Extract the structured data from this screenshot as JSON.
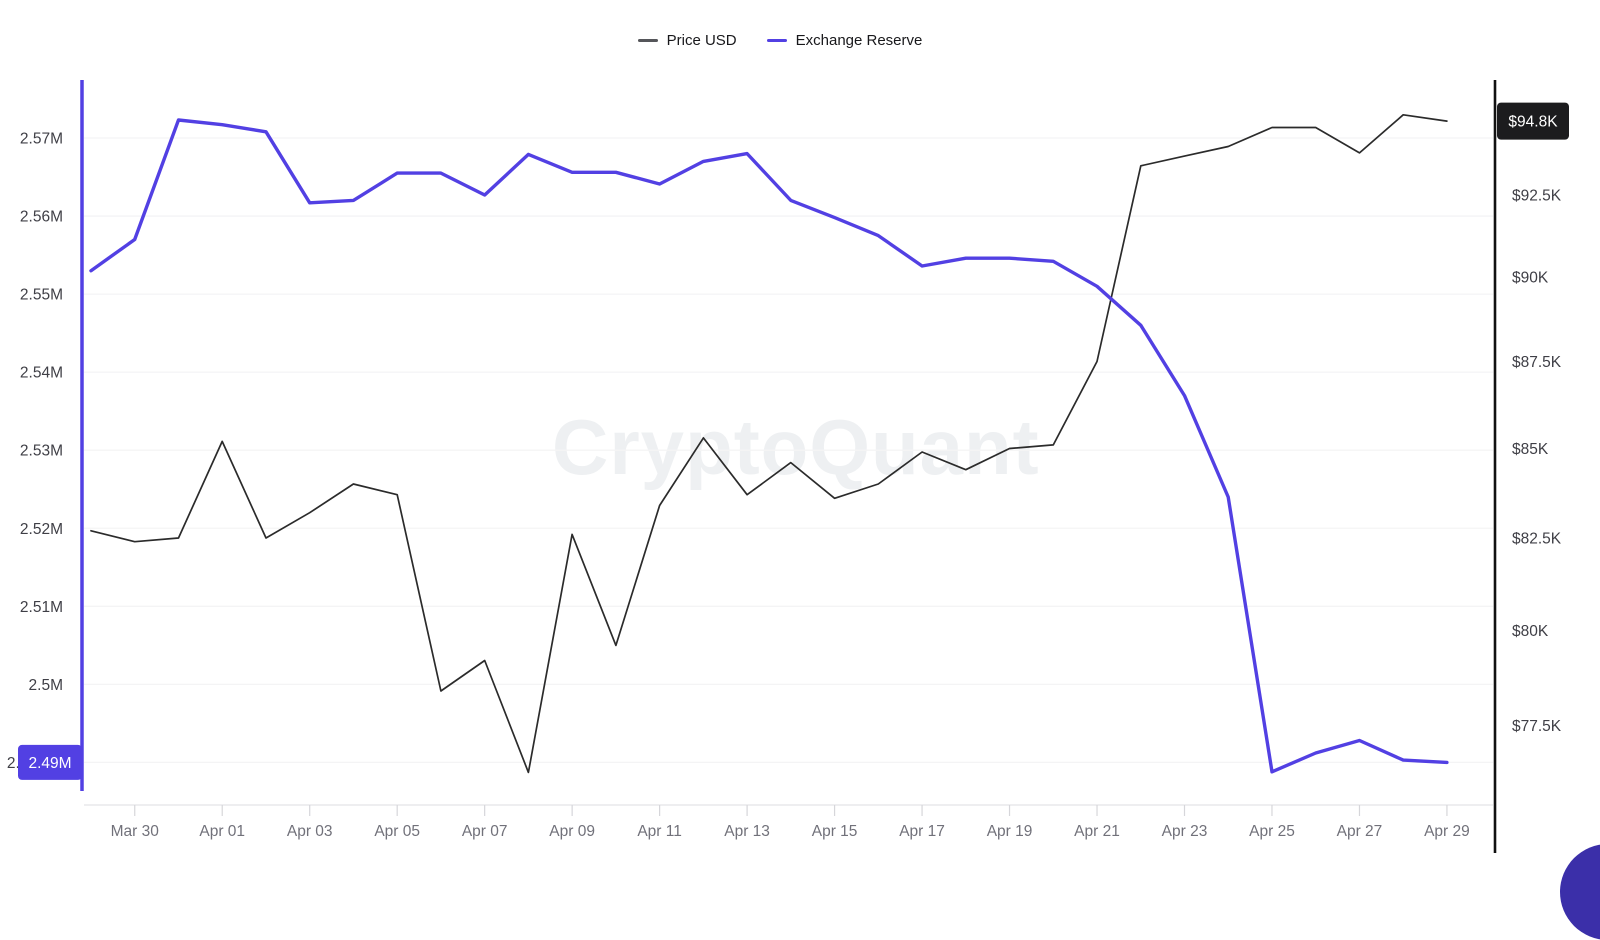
{
  "watermark": "CryptoQuant",
  "legend": [
    {
      "label": "Price USD",
      "color": "#55565a"
    },
    {
      "label": "Exchange Reserve",
      "color": "#5240e3"
    }
  ],
  "chart_data": {
    "type": "line",
    "x": [
      "Mar 29",
      "Mar 30",
      "Mar 31",
      "Apr 01",
      "Apr 02",
      "Apr 03",
      "Apr 04",
      "Apr 05",
      "Apr 06",
      "Apr 07",
      "Apr 08",
      "Apr 09",
      "Apr 10",
      "Apr 11",
      "Apr 12",
      "Apr 13",
      "Apr 14",
      "Apr 15",
      "Apr 16",
      "Apr 17",
      "Apr 18",
      "Apr 19",
      "Apr 20",
      "Apr 21",
      "Apr 22",
      "Apr 23",
      "Apr 24",
      "Apr 25",
      "Apr 26",
      "Apr 27",
      "Apr 28",
      "Apr 29"
    ],
    "x_tick_labels": [
      "Mar 30",
      "Apr 01",
      "Apr 03",
      "Apr 05",
      "Apr 07",
      "Apr 09",
      "Apr 11",
      "Apr 13",
      "Apr 15",
      "Apr 17",
      "Apr 19",
      "Apr 21",
      "Apr 23",
      "Apr 25",
      "Apr 27",
      "Apr 29"
    ],
    "series": [
      {
        "name": "Price USD",
        "axis": "right",
        "unit": "USD (thousands)",
        "color": "#2b2b2b",
        "values": [
          82.7,
          82.4,
          82.5,
          85.2,
          82.5,
          83.2,
          84.0,
          83.7,
          78.4,
          79.2,
          76.3,
          82.6,
          79.6,
          83.4,
          85.3,
          83.7,
          84.6,
          83.6,
          84.0,
          84.9,
          84.4,
          85.0,
          85.1,
          87.5,
          93.4,
          93.7,
          94.0,
          94.6,
          94.6,
          93.8,
          95.0,
          94.8
        ]
      },
      {
        "name": "Exchange Reserve",
        "axis": "left",
        "unit": "BTC (millions)",
        "color": "#5240e3",
        "values": [
          2.553,
          2.557,
          2.5723,
          2.5717,
          2.5708,
          2.5617,
          2.562,
          2.5655,
          2.5655,
          2.5627,
          2.5679,
          2.5656,
          2.5656,
          2.5641,
          2.567,
          2.568,
          2.562,
          2.5598,
          2.5575,
          2.5536,
          2.5546,
          2.5546,
          2.5542,
          2.551,
          2.546,
          2.537,
          2.524,
          2.4888,
          2.4912,
          2.4928,
          2.4903,
          2.49
        ]
      }
    ],
    "left_axis": {
      "scale": "linear",
      "tick_labels": [
        "2.57M",
        "2.56M",
        "2.55M",
        "2.54M",
        "2.53M",
        "2.52M",
        "2.51M",
        "2.5M",
        "2.49M"
      ],
      "tick_values": [
        2.57,
        2.56,
        2.55,
        2.54,
        2.53,
        2.52,
        2.51,
        2.5,
        2.49
      ],
      "range": [
        2.49,
        2.57
      ],
      "current_badge": "2.49M",
      "badge_color": "#5240e3",
      "axis_line_color": "#5240e3"
    },
    "right_axis": {
      "scale": "log",
      "tick_labels": [
        "$92.5K",
        "$90K",
        "$87.5K",
        "$85K",
        "$82.5K",
        "$80K",
        "$77.5K"
      ],
      "tick_values": [
        92.5,
        90,
        87.5,
        85,
        82.5,
        80,
        77.5
      ],
      "current_badge": "$94.8K",
      "badge_color": "#1c1c1e",
      "axis_line_color": "#111111"
    },
    "grid": "horizontal-only",
    "legend_position": "top-center"
  }
}
